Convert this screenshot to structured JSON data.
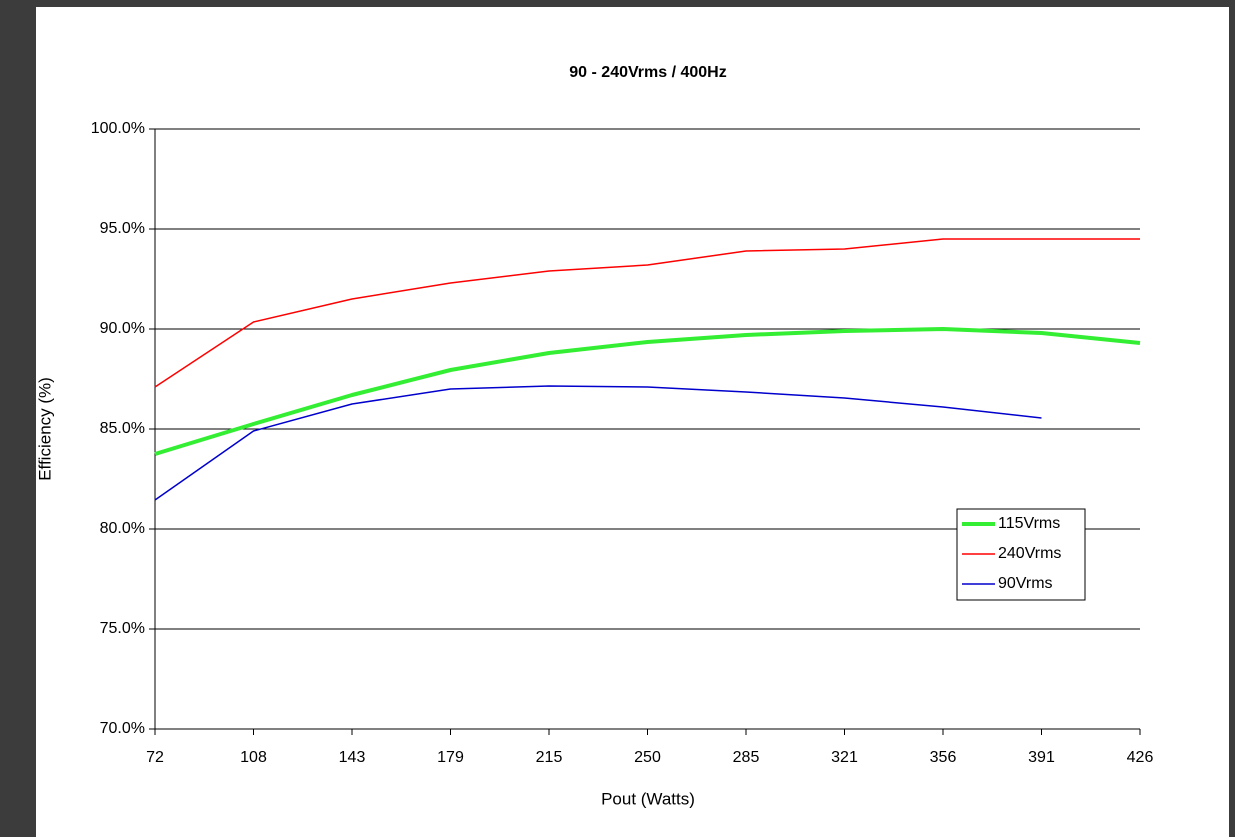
{
  "chart_data": {
    "type": "line",
    "title": "90 - 240Vrms / 400Hz",
    "x_label": "Pout (Watts)",
    "y_label": "Efficiency (%)",
    "categories": [
      "72",
      "108",
      "143",
      "179",
      "215",
      "250",
      "285",
      "321",
      "356",
      "391",
      "426"
    ],
    "series": [
      {
        "name": "115Vrms",
        "color": "#33ee33",
        "line_width": 4,
        "values": [
          83.75,
          85.25,
          86.7,
          87.95,
          88.8,
          89.35,
          89.7,
          89.9,
          90.0,
          89.8,
          89.3
        ]
      },
      {
        "name": "240Vrms",
        "color": "#ff0000",
        "line_width": 1.5,
        "values": [
          87.1,
          90.35,
          91.5,
          92.3,
          92.9,
          93.2,
          93.9,
          94.0,
          94.5,
          94.5,
          94.5
        ]
      },
      {
        "name": "90Vrms",
        "color": "#0000cc",
        "line_width": 1.5,
        "values": [
          81.45,
          84.9,
          86.25,
          87.0,
          87.15,
          87.1,
          86.85,
          86.55,
          86.1,
          85.55,
          null
        ]
      }
    ],
    "ylim": [
      70,
      100
    ],
    "yticks": [
      {
        "value": 70,
        "label": "70.0%"
      },
      {
        "value": 75,
        "label": "75.0%"
      },
      {
        "value": 80,
        "label": "80.0%"
      },
      {
        "value": 85,
        "label": "85.0%"
      },
      {
        "value": 90,
        "label": "90.0%"
      },
      {
        "value": 95,
        "label": "95.0%"
      },
      {
        "value": 100,
        "label": "100.0%"
      }
    ],
    "grid": true,
    "legend": "lower right"
  }
}
